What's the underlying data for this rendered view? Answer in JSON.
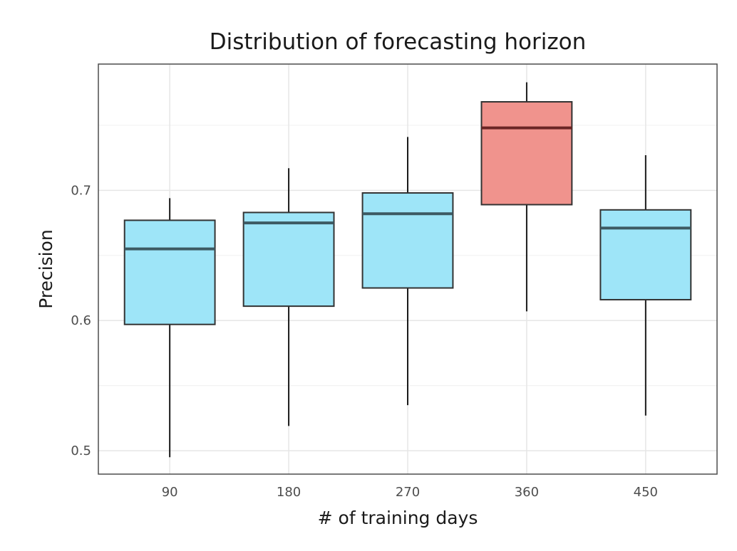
{
  "chart_data": {
    "type": "boxplot",
    "title": "Distribution of forecasting horizon",
    "xlabel": "# of training days",
    "ylabel": "Precision",
    "categories": [
      "90",
      "180",
      "270",
      "360",
      "450"
    ],
    "boxes": [
      {
        "category": "90",
        "lower_whisker": 0.495,
        "q1": 0.597,
        "median": 0.655,
        "q3": 0.677,
        "upper_whisker": 0.694
      },
      {
        "category": "180",
        "lower_whisker": 0.519,
        "q1": 0.611,
        "median": 0.675,
        "q3": 0.683,
        "upper_whisker": 0.717
      },
      {
        "category": "270",
        "lower_whisker": 0.535,
        "q1": 0.625,
        "median": 0.682,
        "q3": 0.698,
        "upper_whisker": 0.741
      },
      {
        "category": "360",
        "lower_whisker": 0.607,
        "q1": 0.689,
        "median": 0.748,
        "q3": 0.768,
        "upper_whisker": 0.783
      },
      {
        "category": "450",
        "lower_whisker": 0.527,
        "q1": 0.616,
        "median": 0.671,
        "q3": 0.685,
        "upper_whisker": 0.727
      }
    ],
    "fill_colors": [
      "#9ee5f8",
      "#9ee5f8",
      "#9ee5f8",
      "#f0938d",
      "#9ee5f8"
    ],
    "median_color": "#3d5a63",
    "highlight_median_color": "#6b2525",
    "yticks": [
      0.5,
      0.6,
      0.7
    ],
    "ytick_labels": [
      "0.5",
      "0.6",
      "0.7"
    ],
    "ylim": [
      0.482,
      0.797
    ],
    "grid": true,
    "legend": "none"
  }
}
